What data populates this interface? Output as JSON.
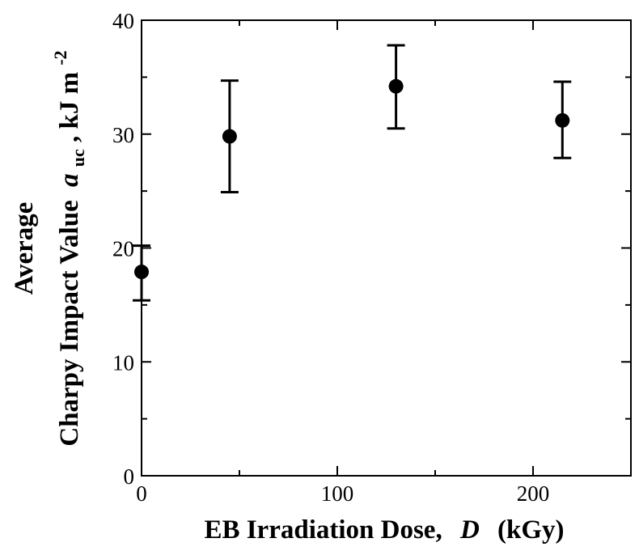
{
  "chart_data": {
    "type": "scatter",
    "title": "",
    "xlabel": {
      "prefix": "EB Irradiation Dose,",
      "symbol": "D",
      "unit": "(kGy)"
    },
    "ylabel": {
      "line1": "Average",
      "line2_prefix": "Charpy Impact Value",
      "symbol": "a",
      "symbol_sub": "uc",
      "line2_unit": ", kJ m",
      "unit_exp": "-2"
    },
    "xlim": [
      0,
      250
    ],
    "ylim": [
      0,
      40
    ],
    "x_ticks": [
      0,
      100,
      200
    ],
    "x_minor_ticks": [
      50,
      150,
      250
    ],
    "y_ticks": [
      0,
      10,
      20,
      30,
      40
    ],
    "y_minor_ticks": [
      5,
      15,
      25,
      35
    ],
    "grid": false,
    "series": [
      {
        "name": "Average Charpy impact value",
        "marker": "filled-circle",
        "x": [
          0,
          45,
          130,
          215
        ],
        "y": [
          17.9,
          29.8,
          34.2,
          31.2
        ],
        "err_low": [
          15.4,
          24.9,
          30.5,
          27.9
        ],
        "err_high": [
          20.2,
          34.7,
          37.8,
          34.6
        ]
      }
    ],
    "colors": {
      "marker": "#000000",
      "axis": "#000000"
    }
  }
}
